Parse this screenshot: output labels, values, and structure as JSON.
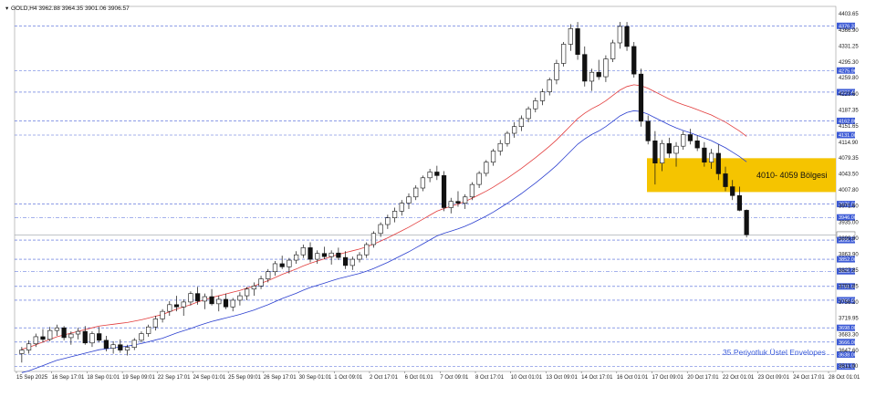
{
  "chart_data": {
    "type": "candlestick",
    "title": "GOLD,H4  3962.88 3964.35 3901.06 3906.57",
    "y_range": [
      3600,
      4420
    ],
    "right_axis_ticks": [
      "4403.65",
      "4366.90",
      "4331.25",
      "4295.30",
      "4259.80",
      "4223.60",
      "4187.35",
      "4151.65",
      "4114.90",
      "4079.35",
      "4043.50",
      "4007.80",
      "3971.60",
      "3935.00",
      "3899.60",
      "3863.90",
      "3827.85",
      "3791.85",
      "3756.20",
      "3719.95",
      "3683.30",
      "3647.60",
      "3611.90"
    ],
    "levels": [
      {
        "label": "4376.33",
        "value": 4376.33,
        "style": "dash"
      },
      {
        "label": "4275.96",
        "value": 4275.96,
        "style": "dash"
      },
      {
        "label": "4227.40",
        "value": 4227.4,
        "style": "dash"
      },
      {
        "label": "4162.86",
        "value": 4162.86,
        "style": "dash"
      },
      {
        "label": "4131.00",
        "value": 4131.0,
        "style": "dash"
      },
      {
        "label": "3976.00",
        "value": 3976.0,
        "style": "dash"
      },
      {
        "label": "3946.00",
        "value": 3946.0,
        "style": "dashdot"
      },
      {
        "label": "3906.57",
        "value": 3906.57,
        "style": "price"
      },
      {
        "label": "3895.06",
        "value": 3895.06,
        "style": "dash"
      },
      {
        "label": "3852.00",
        "value": 3852.0,
        "style": "dash"
      },
      {
        "label": "3825.00",
        "value": 3825.0,
        "style": "dashdot"
      },
      {
        "label": "3791.00",
        "value": 3791.0,
        "style": "dash"
      },
      {
        "label": "3760.00",
        "value": 3760.0,
        "style": "dash"
      },
      {
        "label": "3698.00",
        "value": 3698.0,
        "style": "dash"
      },
      {
        "label": "3666.00",
        "value": 3666.0,
        "style": "dash"
      },
      {
        "label": "3638.00",
        "value": 3638.0,
        "style": "dash"
      },
      {
        "label": "3611.00",
        "value": 3611.0,
        "style": "dash"
      }
    ],
    "x_ticks": [
      "15 Sep 2025",
      "16 Sep 17:01",
      "18 Sep 01:01",
      "19 Sep 09:01",
      "22 Sep 17:01",
      "24 Sep 01:01",
      "25 Sep 09:01",
      "26 Sep 17:01",
      "30 Sep 01:01",
      "1 Oct 09:01",
      "2 Oct 17:01",
      "6 Oct 01:01",
      "7 Oct 09:01",
      "8 Oct 17:01",
      "10 Oct 01:01",
      "13 Oct 09:01",
      "14 Oct 17:01",
      "16 Oct 01:01",
      "17 Oct 09:01",
      "20 Oct 17:01",
      "22 Oct 01:01",
      "23 Oct 09:01",
      "24 Oct 17:01",
      "28 Oct 01:01"
    ],
    "zone": {
      "label": "4010- 4059 Bölgesi",
      "low": 4010,
      "high": 4059,
      "color": "#f5c400"
    },
    "envelope_label": "35 Periyotluk Üstel Envelopes",
    "series_colors": {
      "upper": "#e23b3b",
      "lower": "#2b3fcf"
    },
    "candles": [
      [
        3640,
        3655,
        3620,
        3648
      ],
      [
        3648,
        3670,
        3640,
        3662
      ],
      [
        3662,
        3685,
        3655,
        3678
      ],
      [
        3678,
        3695,
        3665,
        3672
      ],
      [
        3672,
        3700,
        3668,
        3692
      ],
      [
        3692,
        3705,
        3680,
        3698
      ],
      [
        3698,
        3702,
        3670,
        3676
      ],
      [
        3676,
        3690,
        3660,
        3684
      ],
      [
        3684,
        3698,
        3672,
        3690
      ],
      [
        3690,
        3702,
        3660,
        3664
      ],
      [
        3664,
        3690,
        3655,
        3685
      ],
      [
        3685,
        3700,
        3665,
        3670
      ],
      [
        3670,
        3680,
        3645,
        3652
      ],
      [
        3652,
        3668,
        3640,
        3660
      ],
      [
        3660,
        3672,
        3642,
        3648
      ],
      [
        3648,
        3660,
        3636,
        3654
      ],
      [
        3654,
        3675,
        3648,
        3670
      ],
      [
        3670,
        3690,
        3665,
        3685
      ],
      [
        3685,
        3705,
        3678,
        3700
      ],
      [
        3700,
        3725,
        3692,
        3718
      ],
      [
        3718,
        3740,
        3710,
        3735
      ],
      [
        3735,
        3758,
        3725,
        3750
      ],
      [
        3750,
        3770,
        3735,
        3745
      ],
      [
        3745,
        3762,
        3725,
        3756
      ],
      [
        3756,
        3780,
        3748,
        3775
      ],
      [
        3775,
        3790,
        3750,
        3758
      ],
      [
        3758,
        3775,
        3740,
        3768
      ],
      [
        3768,
        3785,
        3748,
        3752
      ],
      [
        3752,
        3770,
        3735,
        3762
      ],
      [
        3762,
        3775,
        3740,
        3745
      ],
      [
        3745,
        3765,
        3735,
        3760
      ],
      [
        3760,
        3778,
        3748,
        3770
      ],
      [
        3770,
        3790,
        3760,
        3785
      ],
      [
        3785,
        3800,
        3770,
        3792
      ],
      [
        3792,
        3815,
        3785,
        3808
      ],
      [
        3808,
        3830,
        3800,
        3824
      ],
      [
        3824,
        3848,
        3815,
        3842
      ],
      [
        3842,
        3860,
        3830,
        3835
      ],
      [
        3835,
        3855,
        3820,
        3850
      ],
      [
        3850,
        3870,
        3842,
        3862
      ],
      [
        3862,
        3885,
        3855,
        3878
      ],
      [
        3878,
        3890,
        3845,
        3852
      ],
      [
        3852,
        3872,
        3842,
        3865
      ],
      [
        3865,
        3880,
        3852,
        3858
      ],
      [
        3858,
        3872,
        3840,
        3866
      ],
      [
        3866,
        3878,
        3850,
        3856
      ],
      [
        3856,
        3870,
        3830,
        3838
      ],
      [
        3838,
        3858,
        3828,
        3852
      ],
      [
        3852,
        3868,
        3845,
        3862
      ],
      [
        3862,
        3890,
        3855,
        3885
      ],
      [
        3885,
        3915,
        3878,
        3910
      ],
      [
        3910,
        3935,
        3902,
        3930
      ],
      [
        3930,
        3952,
        3920,
        3945
      ],
      [
        3945,
        3968,
        3935,
        3960
      ],
      [
        3960,
        3985,
        3950,
        3978
      ],
      [
        3978,
        4000,
        3965,
        3992
      ],
      [
        3992,
        4018,
        3985,
        4012
      ],
      [
        4012,
        4040,
        4005,
        4035
      ],
      [
        4035,
        4055,
        4025,
        4048
      ],
      [
        4048,
        4062,
        4030,
        4040
      ],
      [
        4040,
        4050,
        3960,
        3968
      ],
      [
        3968,
        3990,
        3955,
        3982
      ],
      [
        3982,
        4005,
        3970,
        3978
      ],
      [
        3978,
        3998,
        3965,
        3992
      ],
      [
        3992,
        4025,
        3985,
        4020
      ],
      [
        4020,
        4050,
        4012,
        4045
      ],
      [
        4045,
        4075,
        4038,
        4070
      ],
      [
        4070,
        4100,
        4062,
        4095
      ],
      [
        4095,
        4120,
        4085,
        4112
      ],
      [
        4112,
        4140,
        4105,
        4135
      ],
      [
        4135,
        4160,
        4125,
        4150
      ],
      [
        4150,
        4175,
        4140,
        4168
      ],
      [
        4168,
        4195,
        4160,
        4190
      ],
      [
        4190,
        4215,
        4182,
        4208
      ],
      [
        4208,
        4235,
        4198,
        4228
      ],
      [
        4228,
        4260,
        4220,
        4255
      ],
      [
        4255,
        4300,
        4245,
        4292
      ],
      [
        4292,
        4340,
        4285,
        4335
      ],
      [
        4335,
        4380,
        4320,
        4370
      ],
      [
        4370,
        4385,
        4300,
        4312
      ],
      [
        4312,
        4330,
        4240,
        4252
      ],
      [
        4252,
        4280,
        4230,
        4272
      ],
      [
        4272,
        4300,
        4255,
        4262
      ],
      [
        4262,
        4310,
        4250,
        4302
      ],
      [
        4302,
        4345,
        4295,
        4338
      ],
      [
        4338,
        4385,
        4325,
        4375
      ],
      [
        4375,
        4385,
        4320,
        4330
      ],
      [
        4330,
        4340,
        4260,
        4268
      ],
      [
        4268,
        4280,
        4150,
        4162
      ],
      [
        4162,
        4175,
        4110,
        4118
      ],
      [
        4118,
        4140,
        4020,
        4068
      ],
      [
        4068,
        4120,
        4050,
        4112
      ],
      [
        4112,
        4125,
        4080,
        4090
      ],
      [
        4090,
        4115,
        4060,
        4106
      ],
      [
        4106,
        4140,
        4098,
        4132
      ],
      [
        4132,
        4145,
        4110,
        4118
      ],
      [
        4118,
        4130,
        4095,
        4102
      ],
      [
        4102,
        4115,
        4060,
        4070
      ],
      [
        4070,
        4100,
        4055,
        4090
      ],
      [
        4090,
        4110,
        4030,
        4044
      ],
      [
        4044,
        4060,
        4005,
        4015
      ],
      [
        4015,
        4030,
        3985,
        3995
      ],
      [
        3995,
        4015,
        3960,
        3962
      ],
      [
        3962,
        3964,
        3901,
        3907
      ]
    ],
    "envelope_upper": [
      3650,
      3654,
      3660,
      3666,
      3672,
      3678,
      3682,
      3686,
      3690,
      3694,
      3698,
      3702,
      3704,
      3706,
      3708,
      3710,
      3713,
      3716,
      3720,
      3724,
      3728,
      3734,
      3740,
      3745,
      3750,
      3756,
      3761,
      3766,
      3770,
      3774,
      3778,
      3782,
      3787,
      3792,
      3798,
      3804,
      3811,
      3818,
      3824,
      3830,
      3837,
      3843,
      3848,
      3853,
      3858,
      3863,
      3867,
      3871,
      3875,
      3880,
      3886,
      3893,
      3900,
      3908,
      3916,
      3924,
      3933,
      3942,
      3951,
      3960,
      3966,
      3971,
      3976,
      3982,
      3989,
      3997,
      4005,
      4014,
      4024,
      4034,
      4045,
      4056,
      4068,
      4080,
      4093,
      4106,
      4120,
      4136,
      4152,
      4168,
      4180,
      4190,
      4198,
      4208,
      4220,
      4232,
      4240,
      4244,
      4242,
      4236,
      4228,
      4220,
      4212,
      4205,
      4199,
      4194,
      4188,
      4182,
      4176,
      4168,
      4160,
      4150,
      4140,
      4128
    ]
  }
}
